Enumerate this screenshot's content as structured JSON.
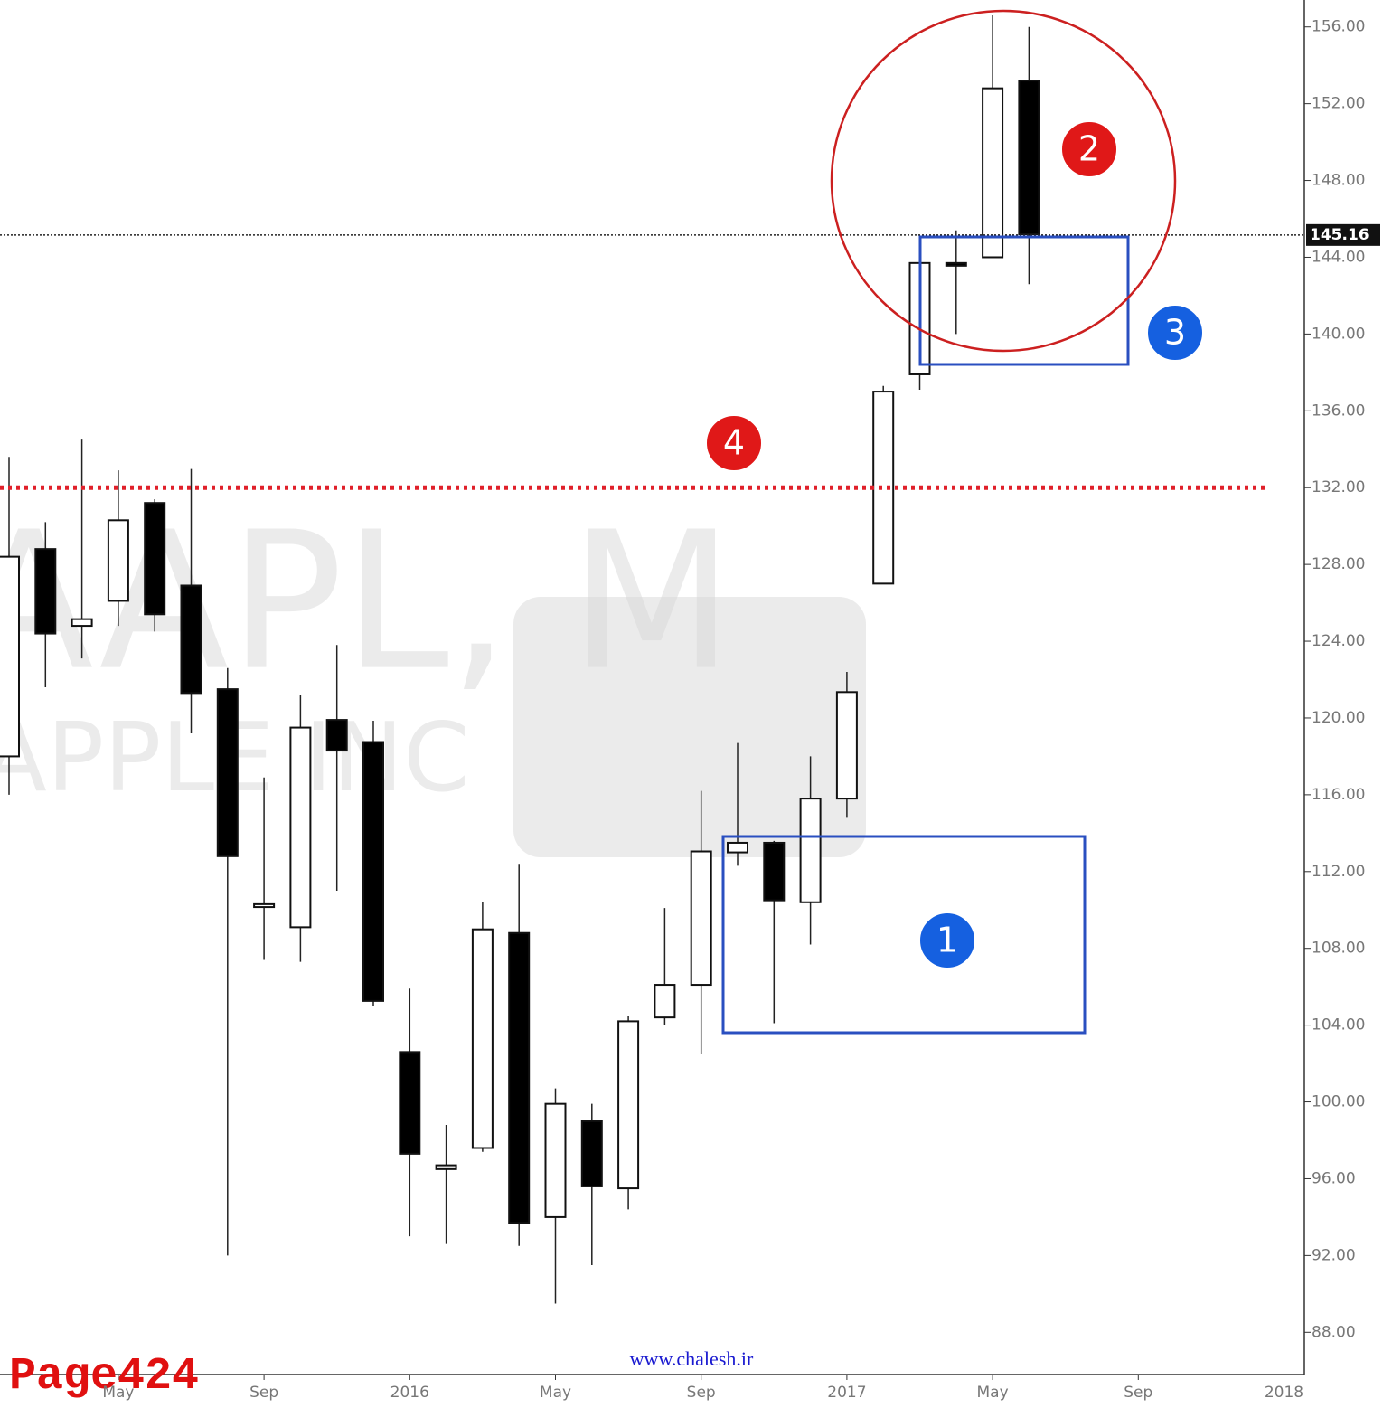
{
  "chart_data": {
    "type": "candlestick",
    "watermark": [
      "AAPL, M",
      "APPLE INC"
    ],
    "categories": [
      null,
      null,
      null,
      "May",
      null,
      null,
      null,
      "Sep",
      null,
      null,
      null,
      "2016",
      null,
      null,
      null,
      "May",
      null,
      null,
      null,
      "Sep",
      null,
      null,
      null,
      "2017",
      null,
      null,
      null,
      "May",
      null,
      null,
      null,
      "Sep",
      null,
      null,
      null,
      "2018"
    ],
    "open": [
      118.0,
      128.8,
      124.8,
      126.1,
      131.2,
      126.9,
      121.5,
      110.15,
      109.1,
      119.9,
      118.75,
      102.6,
      96.5,
      97.6,
      108.8,
      94.0,
      99.0,
      95.5,
      104.4,
      106.1,
      113.0,
      113.5,
      110.4,
      115.8,
      127.0,
      137.9,
      143.7,
      144.0,
      153.2,
      null,
      null,
      null,
      null,
      null,
      null,
      null
    ],
    "high": [
      133.6,
      130.2,
      134.5,
      132.9,
      131.4,
      132.97,
      122.6,
      116.9,
      121.2,
      123.8,
      119.86,
      105.9,
      98.8,
      110.4,
      112.4,
      100.7,
      99.9,
      104.5,
      110.1,
      116.2,
      118.7,
      113.6,
      118.0,
      122.4,
      137.3,
      144.0,
      145.4,
      156.6,
      156.0,
      null,
      null,
      null,
      null,
      null,
      null,
      null
    ],
    "low": [
      116.0,
      121.6,
      123.1,
      124.8,
      124.5,
      119.2,
      92.0,
      107.4,
      107.3,
      111.0,
      105.0,
      93.0,
      92.6,
      97.4,
      92.5,
      89.5,
      91.5,
      94.4,
      104.0,
      102.5,
      112.3,
      104.1,
      108.2,
      114.8,
      127.0,
      137.1,
      140.0,
      144.0,
      142.6,
      null,
      null,
      null,
      null,
      null,
      null,
      null
    ],
    "close": [
      128.4,
      124.4,
      125.15,
      130.3,
      125.4,
      121.3,
      112.8,
      110.3,
      119.5,
      118.3,
      105.26,
      97.3,
      96.7,
      108.99,
      93.7,
      99.9,
      95.6,
      104.2,
      106.1,
      113.05,
      113.5,
      110.5,
      115.8,
      121.35,
      137.0,
      143.7,
      143.6,
      152.8,
      145.2,
      null,
      null,
      null,
      null,
      null,
      null,
      null
    ],
    "up_color": "#ffffff",
    "down_color": "#000000",
    "ylim": [
      85.8,
      157.4
    ],
    "yticks": [
      {
        "value": 88,
        "label": "88.00"
      },
      {
        "value": 92,
        "label": "92.00"
      },
      {
        "value": 96,
        "label": "96.00"
      },
      {
        "value": 100,
        "label": "100.00"
      },
      {
        "value": 104,
        "label": "104.00"
      },
      {
        "value": 108,
        "label": "108.00"
      },
      {
        "value": 112,
        "label": "112.00"
      },
      {
        "value": 116,
        "label": "116.00"
      },
      {
        "value": 120,
        "label": "120.00"
      },
      {
        "value": 124,
        "label": "124.00"
      },
      {
        "value": 128,
        "label": "128.00"
      },
      {
        "value": 132,
        "label": "132.00"
      },
      {
        "value": 136,
        "label": "136.00"
      },
      {
        "value": 140,
        "label": "140.00"
      },
      {
        "value": 144,
        "label": "144.00"
      },
      {
        "value": 148,
        "label": "148.00"
      },
      {
        "value": 152,
        "label": "152.00"
      },
      {
        "value": 156,
        "label": "156.00"
      }
    ],
    "last_price": 145.16,
    "level": 132,
    "level_color": "#e0202a",
    "annotations": [
      "1",
      "2",
      "3",
      "4"
    ],
    "footer": {
      "page": "Page424",
      "site": "www.chalesh.ir"
    }
  }
}
